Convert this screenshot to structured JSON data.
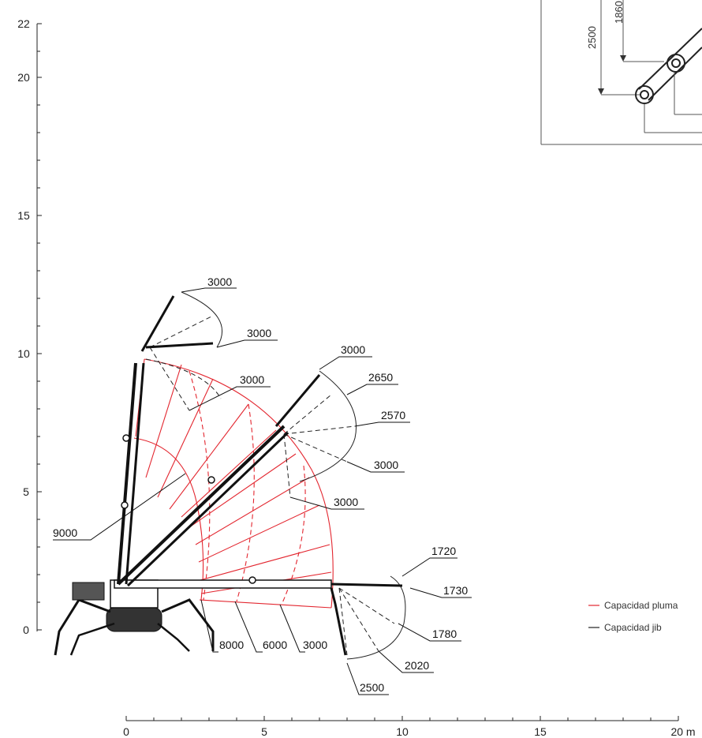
{
  "y_axis": {
    "ticks": [
      "0",
      "5",
      "10",
      "15",
      "20",
      "22"
    ]
  },
  "x_axis": {
    "ticks": [
      "0",
      "5",
      "10",
      "15",
      "20 m"
    ]
  },
  "inset": {
    "labels": [
      "2500",
      "1860"
    ]
  },
  "callouts": {
    "jib_top_left_upper": "3000",
    "jib_top_left_lower": "3000",
    "boom_top_left": "3000",
    "jib_mid_top": "3000",
    "jib_mid_2650": "2650",
    "jib_mid_2570": "2570",
    "jib_mid_3000": "3000",
    "boom_mid_3000": "3000",
    "boom_9000": "9000",
    "jib_right_1720": "1720",
    "jib_right_1730": "1730",
    "jib_right_1780": "1780",
    "jib_right_2020": "2020",
    "jib_right_2500": "2500",
    "boom_8000": "8000",
    "boom_6000": "6000",
    "boom_3000_bottom": "3000"
  },
  "legend": {
    "boom_label": "Capacidad pluma",
    "jib_label": "Capacidad jib",
    "boom_color": "#e3262f",
    "jib_color": "#222222"
  }
}
